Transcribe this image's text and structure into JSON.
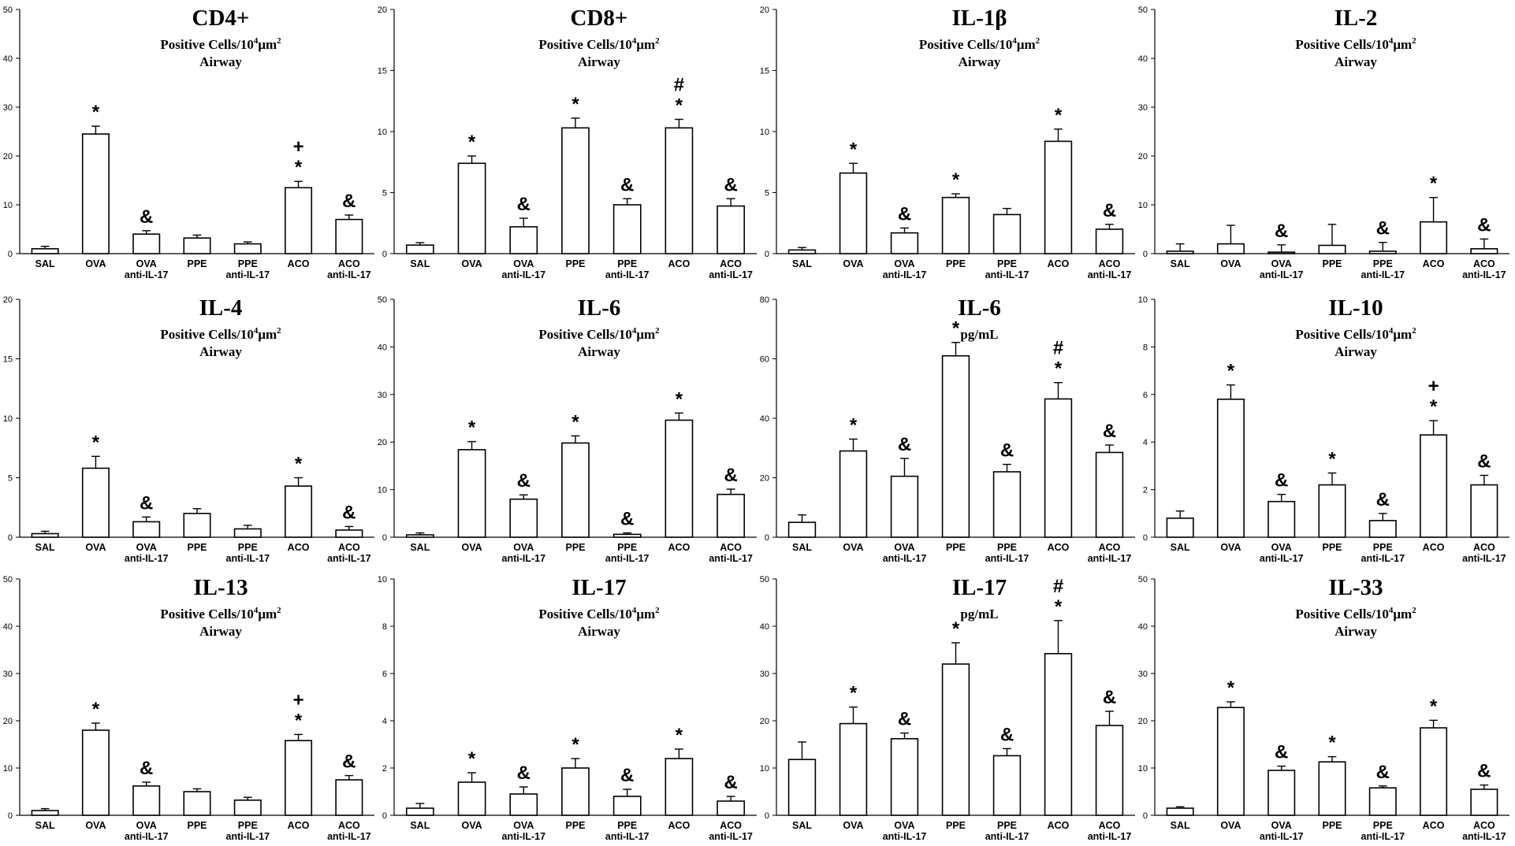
{
  "chart_data": [
    {
      "type": "bar",
      "title": "CD4+",
      "subtitle_pre": "Positive Cells/10",
      "subtitle_sup": "4",
      "subtitle_post": "μm",
      "subtitle_sup2": "2",
      "subtitle_line2": "Airway",
      "ylim": [
        0,
        50
      ],
      "yticks": [
        0,
        10,
        20,
        30,
        40,
        50
      ],
      "categories": [
        "SAL",
        "OVA",
        "OVA|anti-IL-17",
        "PPE",
        "PPE|anti-IL-17",
        "ACO",
        "ACO|anti-IL-17"
      ],
      "values": [
        1,
        24.5,
        4,
        3.2,
        2,
        13.5,
        7
      ],
      "errors": [
        0.5,
        1.6,
        0.7,
        0.6,
        0.4,
        1.3,
        0.9
      ],
      "annotations": [
        "",
        "*",
        "&",
        "",
        "",
        "*|+",
        "&"
      ]
    },
    {
      "type": "bar",
      "title": "CD8+",
      "subtitle_pre": "Positive Cells/10",
      "subtitle_sup": "4",
      "subtitle_post": "μm",
      "subtitle_sup2": "2",
      "subtitle_line2": "Airway",
      "ylim": [
        0,
        20
      ],
      "yticks": [
        0,
        5,
        10,
        15,
        20
      ],
      "categories": [
        "SAL",
        "OVA",
        "OVA|anti-IL-17",
        "PPE",
        "PPE|anti-IL-17",
        "ACO",
        "ACO|anti-IL-17"
      ],
      "values": [
        0.7,
        7.4,
        2.2,
        10.3,
        4,
        10.3,
        3.9
      ],
      "errors": [
        0.2,
        0.6,
        0.7,
        0.8,
        0.5,
        0.7,
        0.6
      ],
      "annotations": [
        "",
        "*",
        "&",
        "*",
        "&",
        "*|#",
        "&"
      ]
    },
    {
      "type": "bar",
      "title": "IL-1β",
      "subtitle_pre": "Positive Cells/10",
      "subtitle_sup": "4",
      "subtitle_post": "μm",
      "subtitle_sup2": "2",
      "subtitle_line2": "Airway",
      "ylim": [
        0,
        20
      ],
      "yticks": [
        0,
        5,
        10,
        15,
        20
      ],
      "categories": [
        "SAL",
        "OVA",
        "OVA|anti-IL-17",
        "PPE",
        "PPE|anti-IL-17",
        "ACO",
        "ACO|anti-IL-17"
      ],
      "values": [
        0.3,
        6.6,
        1.7,
        4.6,
        3.2,
        9.2,
        2
      ],
      "errors": [
        0.2,
        0.8,
        0.4,
        0.3,
        0.5,
        1,
        0.4
      ],
      "annotations": [
        "",
        "*",
        "&",
        "*",
        "",
        "*",
        "&"
      ]
    },
    {
      "type": "bar",
      "title": "IL-2",
      "subtitle_pre": "Positive Cells/10",
      "subtitle_sup": "4",
      "subtitle_post": "μm",
      "subtitle_sup2": "2",
      "subtitle_line2": "Airway",
      "ylim": [
        0,
        50
      ],
      "yticks": [
        0,
        10,
        20,
        30,
        40,
        50
      ],
      "categories": [
        "SAL",
        "OVA",
        "OVA|anti-IL-17",
        "PPE",
        "PPE|anti-IL-17",
        "ACO",
        "ACO|anti-IL-17"
      ],
      "values": [
        0.5,
        2,
        0.3,
        1.7,
        0.5,
        6.5,
        1
      ],
      "errors": [
        1.5,
        3.8,
        1.5,
        4.3,
        1.8,
        5,
        2
      ],
      "annotations": [
        "",
        "",
        "&",
        "",
        "&",
        "*",
        "&"
      ]
    },
    {
      "type": "bar",
      "title": "IL-4",
      "subtitle_pre": "Positive Cells/10",
      "subtitle_sup": "4",
      "subtitle_post": "μm",
      "subtitle_sup2": "2",
      "subtitle_line2": "Airway",
      "ylim": [
        0,
        20
      ],
      "yticks": [
        0,
        5,
        10,
        15,
        20
      ],
      "categories": [
        "SAL",
        "OVA",
        "OVA|anti-IL-17",
        "PPE",
        "PPE|anti-IL-17",
        "ACO",
        "ACO|anti-IL-17"
      ],
      "values": [
        0.3,
        5.8,
        1.3,
        2,
        0.7,
        4.3,
        0.6
      ],
      "errors": [
        0.2,
        1,
        0.4,
        0.4,
        0.3,
        0.7,
        0.3
      ],
      "annotations": [
        "",
        "*",
        "&",
        "",
        "",
        "*",
        "&"
      ]
    },
    {
      "type": "bar",
      "title": "IL-6",
      "subtitle_pre": "Positive Cells/10",
      "subtitle_sup": "4",
      "subtitle_post": "μm",
      "subtitle_sup2": "2",
      "subtitle_line2": "Airway",
      "ylim": [
        0,
        50
      ],
      "yticks": [
        0,
        10,
        20,
        30,
        40,
        50
      ],
      "categories": [
        "SAL",
        "OVA",
        "OVA|anti-IL-17",
        "PPE",
        "PPE|anti-IL-17",
        "ACO",
        "ACO|anti-IL-17"
      ],
      "values": [
        0.5,
        18.4,
        8,
        19.8,
        0.6,
        24.6,
        9
      ],
      "errors": [
        0.4,
        1.7,
        0.9,
        1.5,
        0.3,
        1.5,
        1.1
      ],
      "annotations": [
        "",
        "*",
        "&",
        "*",
        "&",
        "*",
        "&"
      ]
    },
    {
      "type": "bar",
      "title": "IL-6",
      "subtitle_pre": "pg/mL",
      "subtitle_sup": "",
      "subtitle_post": "",
      "subtitle_sup2": "",
      "subtitle_line2": "",
      "ylim": [
        0,
        80
      ],
      "yticks": [
        0,
        20,
        40,
        60,
        80
      ],
      "categories": [
        "SAL",
        "OVA",
        "OVA|anti-IL-17",
        "PPE",
        "PPE|anti-IL-17",
        "ACO",
        "ACO|anti-IL-17"
      ],
      "values": [
        5,
        29,
        20.5,
        61,
        22,
        46.5,
        28.5
      ],
      "errors": [
        2.5,
        4,
        6,
        4.5,
        2.5,
        5.5,
        2.5
      ],
      "annotations": [
        "",
        "*",
        "&",
        "*",
        "&",
        "*|#",
        "&"
      ]
    },
    {
      "type": "bar",
      "title": "IL-10",
      "subtitle_pre": "Positive Cells/10",
      "subtitle_sup": "4",
      "subtitle_post": "μm",
      "subtitle_sup2": "2",
      "subtitle_line2": "Airway",
      "ylim": [
        0,
        10
      ],
      "yticks": [
        0,
        2,
        4,
        6,
        8,
        10
      ],
      "categories": [
        "SAL",
        "OVA",
        "OVA|anti-IL-17",
        "PPE",
        "PPE|anti-IL-17",
        "ACO",
        "ACO|anti-IL-17"
      ],
      "values": [
        0.8,
        5.8,
        1.5,
        2.2,
        0.7,
        4.3,
        2.2
      ],
      "errors": [
        0.3,
        0.6,
        0.3,
        0.5,
        0.3,
        0.6,
        0.4
      ],
      "annotations": [
        "",
        "*",
        "&",
        "*",
        "&",
        "*|+",
        "&"
      ]
    },
    {
      "type": "bar",
      "title": "IL-13",
      "subtitle_pre": "Positive Cells/10",
      "subtitle_sup": "4",
      "subtitle_post": "μm",
      "subtitle_sup2": "2",
      "subtitle_line2": "Airway",
      "ylim": [
        0,
        50
      ],
      "yticks": [
        0,
        10,
        20,
        30,
        40,
        50
      ],
      "categories": [
        "SAL",
        "OVA",
        "OVA|anti-IL-17",
        "PPE",
        "PPE|anti-IL-17",
        "ACO",
        "ACO|anti-IL-17"
      ],
      "values": [
        1,
        18,
        6.2,
        5,
        3.2,
        15.8,
        7.5
      ],
      "errors": [
        0.4,
        1.5,
        0.8,
        0.6,
        0.6,
        1.3,
        0.9
      ],
      "annotations": [
        "",
        "*",
        "&",
        "",
        "",
        "*|+",
        "&"
      ]
    },
    {
      "type": "bar",
      "title": "IL-17",
      "subtitle_pre": "Positive Cells/10",
      "subtitle_sup": "4",
      "subtitle_post": "μm",
      "subtitle_sup2": "2",
      "subtitle_line2": "Airway",
      "ylim": [
        0,
        10
      ],
      "yticks": [
        0,
        2,
        4,
        6,
        8,
        10
      ],
      "categories": [
        "SAL",
        "OVA",
        "OVA|anti-IL-17",
        "PPE",
        "PPE|anti-IL-17",
        "ACO",
        "ACO|anti-IL-17"
      ],
      "values": [
        0.3,
        1.4,
        0.9,
        2,
        0.8,
        2.4,
        0.6
      ],
      "errors": [
        0.2,
        0.4,
        0.3,
        0.4,
        0.3,
        0.4,
        0.2
      ],
      "annotations": [
        "",
        "*",
        "&",
        "*",
        "&",
        "*",
        "&"
      ]
    },
    {
      "type": "bar",
      "title": "IL-17",
      "subtitle_pre": "pg/mL",
      "subtitle_sup": "",
      "subtitle_post": "",
      "subtitle_sup2": "",
      "subtitle_line2": "",
      "ylim": [
        0,
        50
      ],
      "yticks": [
        0,
        10,
        20,
        30,
        40,
        50
      ],
      "categories": [
        "SAL",
        "OVA",
        "OVA|anti-IL-17",
        "PPE",
        "PPE|anti-IL-17",
        "ACO",
        "ACO|anti-IL-17"
      ],
      "values": [
        11.8,
        19.4,
        16.2,
        32,
        12.6,
        34.2,
        19
      ],
      "errors": [
        3.7,
        3.5,
        1.2,
        4.5,
        1.5,
        7,
        3
      ],
      "annotations": [
        "",
        "*",
        "&",
        "*",
        "&",
        "*|#",
        "&"
      ]
    },
    {
      "type": "bar",
      "title": "IL-33",
      "subtitle_pre": "Positive Cells/10",
      "subtitle_sup": "4",
      "subtitle_post": "μm",
      "subtitle_sup2": "2",
      "subtitle_line2": "Airway",
      "ylim": [
        0,
        50
      ],
      "yticks": [
        0,
        10,
        20,
        30,
        40,
        50
      ],
      "categories": [
        "SAL",
        "OVA",
        "OVA|anti-IL-17",
        "PPE",
        "PPE|anti-IL-17",
        "ACO",
        "ACO|anti-IL-17"
      ],
      "values": [
        1.5,
        22.8,
        9.5,
        11.3,
        5.8,
        18.5,
        5.5
      ],
      "errors": [
        0.3,
        1.2,
        0.9,
        1.1,
        0.4,
        1.6,
        0.9
      ],
      "annotations": [
        "",
        "*",
        "&",
        "*",
        "&",
        "*",
        "&"
      ]
    }
  ]
}
